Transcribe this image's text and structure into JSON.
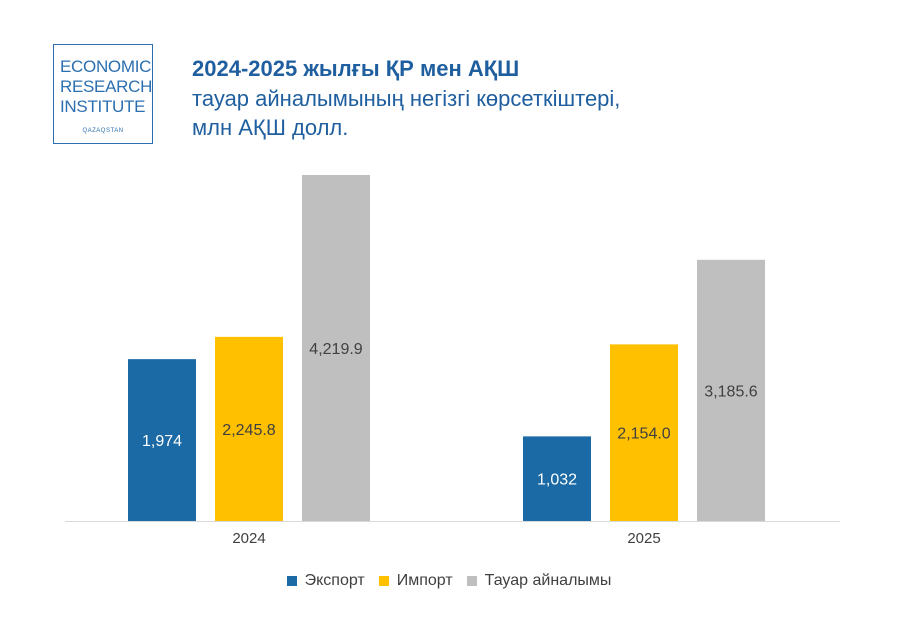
{
  "logo": {
    "lines": [
      "ECONOMIC",
      "RESEARCH",
      "INSTITUTE"
    ],
    "sub": "QAZAQSTAN"
  },
  "header": {
    "title": "2024-2025 жылғы ҚР мен АҚШ",
    "subtitle_line1": "тауар айналымының негізгі көрсеткіштері,",
    "subtitle_line2": "млн АҚШ долл."
  },
  "chart_data": {
    "type": "bar",
    "title": "2024-2025 жылғы ҚР мен АҚШ тауар айналымының негізгі көрсеткіштері, млн АҚШ долл.",
    "categories": [
      "2024",
      "2025"
    ],
    "series": [
      {
        "name": "Экспорт",
        "color": "#1b6aa5",
        "values": [
          1974,
          1032
        ],
        "labels": [
          "1,974",
          "1,032"
        ]
      },
      {
        "name": "Импорт",
        "color": "#ffc000",
        "values": [
          2245.8,
          2154.0
        ],
        "labels": [
          "2,245.8",
          "2,154.0"
        ]
      },
      {
        "name": "Тауар айналымы",
        "color": "#bfbfbf",
        "values": [
          4219.9,
          3185.6
        ],
        "labels": [
          "4,219.9",
          "3,185.6"
        ]
      }
    ],
    "ylim": [
      0,
      4400
    ],
    "xlabel": "",
    "ylabel": "",
    "grid": false,
    "legend": "bottom"
  }
}
